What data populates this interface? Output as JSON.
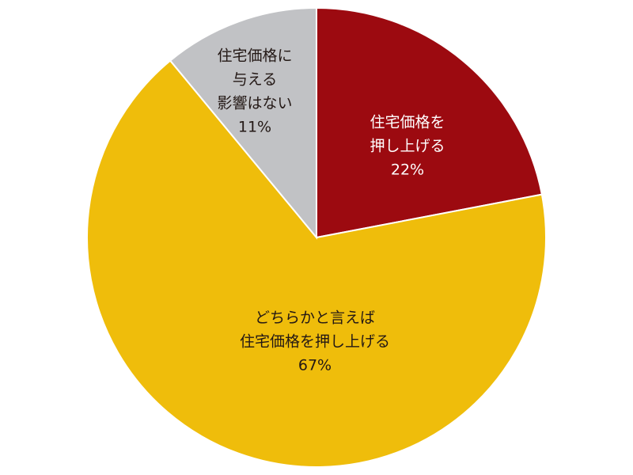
{
  "chart_data": {
    "type": "pie",
    "categories": [
      [
        "住宅価格を",
        "押し上げる"
      ],
      [
        "どちらかと言えば",
        "住宅価格を押し上げる"
      ],
      [
        "住宅価格に",
        "与える",
        "影響はない"
      ]
    ],
    "values": [
      22,
      67,
      11
    ],
    "value_labels": [
      "22%",
      "67%",
      "11%"
    ],
    "colors": [
      "#9c0a10",
      "#efbd0b",
      "#c1c2c5"
    ],
    "label_colors": [
      "#ffffff",
      "#231815",
      "#231815"
    ]
  }
}
